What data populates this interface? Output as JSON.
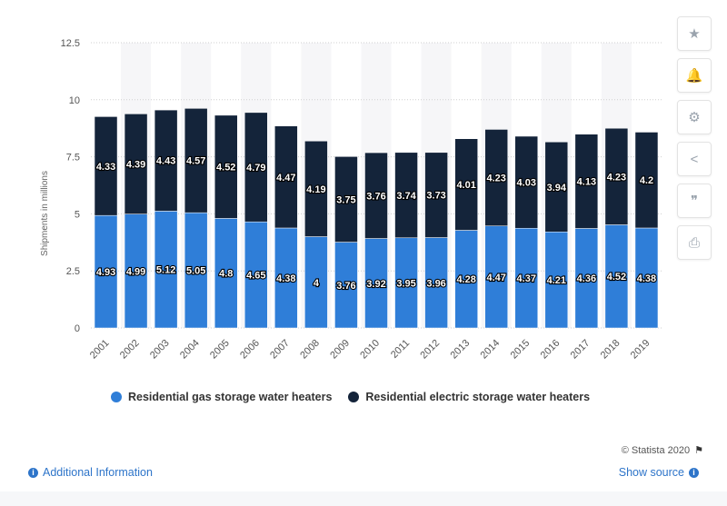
{
  "chart_data": {
    "type": "bar",
    "stacked": true,
    "categories": [
      "2001",
      "2002",
      "2003",
      "2004",
      "2005",
      "2006",
      "2007",
      "2008",
      "2009",
      "2010",
      "2011",
      "2012",
      "2013",
      "2014",
      "2015",
      "2016",
      "2017",
      "2018",
      "2019"
    ],
    "series": [
      {
        "name": "Residential gas storage water heaters",
        "color": "#2f7ed8",
        "values": [
          4.93,
          4.99,
          5.12,
          5.05,
          4.8,
          4.65,
          4.38,
          4,
          3.76,
          3.92,
          3.95,
          3.96,
          4.28,
          4.47,
          4.37,
          4.21,
          4.36,
          4.52,
          4.38
        ]
      },
      {
        "name": "Residential electric storage water heaters",
        "color": "#14243a",
        "values": [
          4.33,
          4.39,
          4.43,
          4.57,
          4.52,
          4.79,
          4.47,
          4.19,
          3.75,
          3.76,
          3.74,
          3.73,
          4.01,
          4.23,
          4.03,
          3.94,
          4.13,
          4.23,
          4.2
        ]
      }
    ],
    "ylabel": "Shipments in millions",
    "ylim": [
      0,
      12.5
    ],
    "yticks": [
      "0",
      "2.5",
      "5",
      "7.5",
      "10",
      "12.5"
    ],
    "grid": true,
    "legend_position": "bottom"
  },
  "toolbar": {
    "icons": [
      "star-icon",
      "bell-icon",
      "gear-icon",
      "share-icon",
      "quote-icon",
      "print-icon"
    ],
    "glyphs": [
      "★",
      "🔔",
      "⚙",
      "<",
      "❞",
      "⎙"
    ]
  },
  "footer": {
    "copyright": "© Statista 2020",
    "additional_info": "Additional Information",
    "show_source": "Show source"
  }
}
